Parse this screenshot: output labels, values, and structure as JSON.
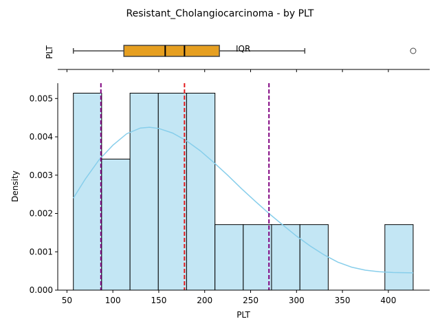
{
  "chart_data": [
    {
      "type": "box",
      "title": "Resistant_Cholangiocarcinoma - by PLT",
      "ylabel": "PLT",
      "annotation": "IQR",
      "whisker_low": 57,
      "q1": 112,
      "median": 157,
      "mean": 178,
      "q3": 216,
      "whisker_high": 309,
      "outliers": [
        427
      ],
      "box_color": "#E69F20"
    },
    {
      "type": "bar",
      "subtype": "histogram",
      "xlabel": "PLT",
      "ylabel": "Density",
      "xlim": [
        40,
        445
      ],
      "ylim": [
        0,
        0.0054
      ],
      "xticks": [
        50,
        100,
        150,
        200,
        250,
        300,
        350,
        400
      ],
      "yticks": [
        "0.000",
        "0.001",
        "0.002",
        "0.003",
        "0.004",
        "0.005"
      ],
      "bin_edges": [
        57,
        87.8,
        118.7,
        149.5,
        180.3,
        211.2,
        242,
        272.8,
        303.7,
        334.5,
        365.3,
        396.2,
        427
      ],
      "values": [
        0.00514,
        0.00342,
        0.00514,
        0.00514,
        0.00514,
        0.00171,
        0.00171,
        0.00171,
        0.00171,
        0,
        0,
        0.00171
      ],
      "kde": {
        "x": [
          57,
          70,
          85,
          100,
          115,
          130,
          140,
          150,
          165,
          180,
          195,
          210,
          225,
          240,
          255,
          270,
          285,
          300,
          315,
          330,
          345,
          360,
          375,
          390,
          405,
          427
        ],
        "y": [
          0.0024,
          0.0029,
          0.0034,
          0.00378,
          0.00408,
          0.00423,
          0.00425,
          0.00422,
          0.0041,
          0.0039,
          0.00364,
          0.00333,
          0.003,
          0.00265,
          0.00232,
          0.002,
          0.0017,
          0.00141,
          0.00115,
          0.00092,
          0.00073,
          0.0006,
          0.00052,
          0.00048,
          0.00046,
          0.00045
        ]
      },
      "reference_lines": [
        {
          "value": 87,
          "color": "#800080"
        },
        {
          "value": 178,
          "color": "#E31A1C"
        },
        {
          "value": 270,
          "color": "#800080"
        }
      ],
      "bar_color": "#C3E6F4",
      "kde_color": "#87CEEB"
    }
  ]
}
